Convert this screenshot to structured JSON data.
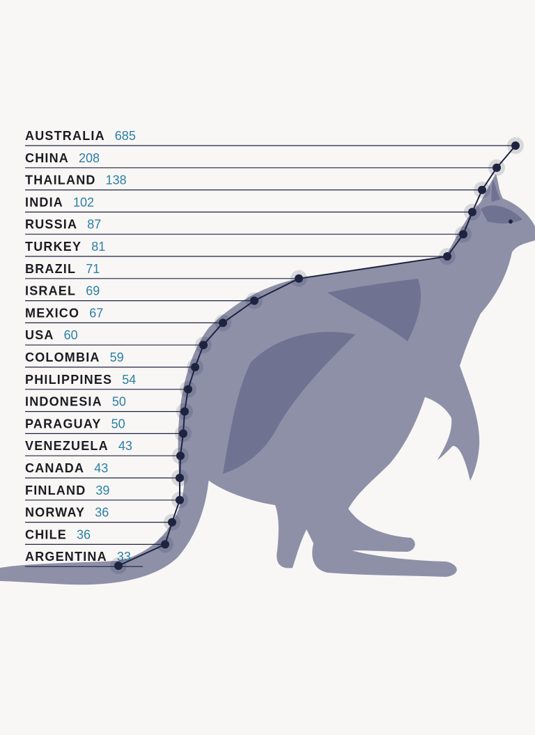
{
  "colors": {
    "background": "#f8f7f5",
    "kangaroo": "#8e90a8",
    "kangaroo_shade": "#6f7290",
    "line": "#1e2340",
    "dot": "#1e2340",
    "value_text": "#2c7fa6",
    "label_text": "#1b1b22"
  },
  "illustration": "kangaroo",
  "chart_data": {
    "type": "line",
    "title": "",
    "xlabel": "",
    "ylabel": "",
    "categories": [
      "AUSTRALIA",
      "CHINA",
      "THAILAND",
      "INDIA",
      "RUSSIA",
      "TURKEY",
      "BRAZIL",
      "ISRAEL",
      "MEXICO",
      "USA",
      "COLOMBIA",
      "PHILIPPINES",
      "INDONESIA",
      "PARAGUAY",
      "VENEZUELA",
      "CANADA",
      "FINLAND",
      "NORWAY",
      "CHILE",
      "ARGENTINA"
    ],
    "values": [
      685,
      208,
      138,
      102,
      87,
      81,
      71,
      69,
      67,
      60,
      59,
      54,
      50,
      50,
      43,
      43,
      39,
      36,
      36,
      33
    ],
    "value_labels": [
      "685",
      "208",
      "138",
      "102",
      "87",
      "81",
      "71",
      "69",
      "67",
      "60",
      "59",
      "54",
      "50",
      "50",
      "43",
      "43",
      "39",
      "36",
      "36",
      "33"
    ],
    "orientation": "horizontal",
    "grid": false,
    "legend": "none"
  }
}
